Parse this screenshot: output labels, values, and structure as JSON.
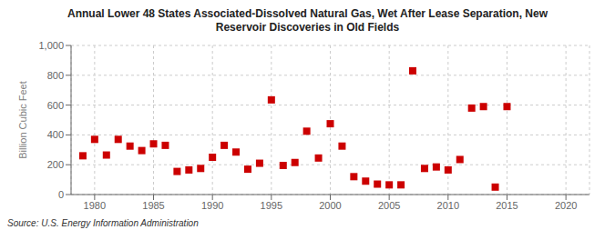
{
  "chart_data": {
    "type": "scatter",
    "title": "Annual Lower 48 States Associated-Dissolved Natural Gas, Wet After Lease Separation, New\nReservoir Discoveries in Old Fields",
    "ylabel": "Billion Cubic Feet",
    "annotations": [
      "Source: U.S. Energy Information Administration"
    ],
    "color": "#cc0000",
    "marker": "square",
    "grid": true,
    "xlim": [
      1978,
      2022
    ],
    "ylim": [
      0,
      1000
    ],
    "xticks": [
      1980,
      1985,
      1990,
      1995,
      2000,
      2005,
      2010,
      2015,
      2020
    ],
    "yticks": [
      0,
      200,
      400,
      600,
      800,
      {
        "value": 1000,
        "label": "1,000"
      }
    ],
    "x": [
      1979,
      1980,
      1981,
      1982,
      1983,
      1984,
      1985,
      1986,
      1987,
      1988,
      1989,
      1990,
      1991,
      1992,
      1993,
      1994,
      1995,
      1996,
      1997,
      1998,
      1999,
      2000,
      2001,
      2002,
      2003,
      2004,
      2005,
      2006,
      2007,
      2008,
      2009,
      2010,
      2011,
      2012,
      2013,
      2014,
      2015
    ],
    "values": [
      260,
      370,
      265,
      370,
      325,
      295,
      340,
      330,
      155,
      165,
      175,
      250,
      330,
      285,
      170,
      210,
      635,
      195,
      215,
      425,
      245,
      475,
      325,
      120,
      90,
      70,
      65,
      65,
      830,
      175,
      185,
      165,
      235,
      580,
      590,
      50,
      590
    ]
  }
}
